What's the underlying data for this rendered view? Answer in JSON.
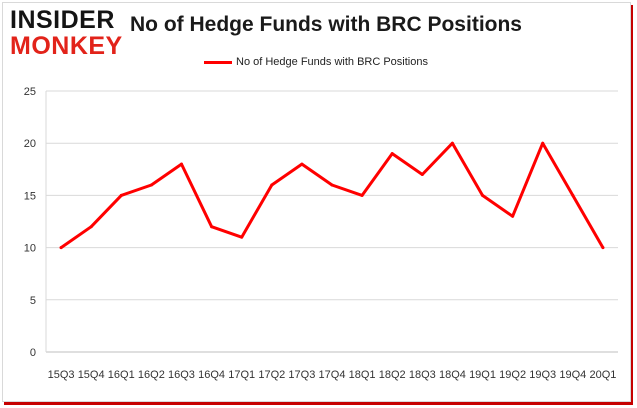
{
  "logo": {
    "line1": "INSIDER",
    "line2": "MONKEY"
  },
  "chart_data": {
    "type": "line",
    "title": "No of Hedge Funds with BRC Positions",
    "xlabel": "",
    "ylabel": "",
    "legend_position": "top-center",
    "grid": true,
    "categories": [
      "15Q3",
      "15Q4",
      "16Q1",
      "16Q2",
      "16Q3",
      "16Q4",
      "17Q1",
      "17Q2",
      "17Q3",
      "17Q4",
      "18Q1",
      "18Q2",
      "18Q3",
      "18Q4",
      "19Q1",
      "19Q2",
      "19Q3",
      "19Q4",
      "20Q1"
    ],
    "ylim": [
      0,
      25
    ],
    "yticks": [
      0,
      5,
      10,
      15,
      20,
      25
    ],
    "series": [
      {
        "name": "No of Hedge Funds with BRC Positions",
        "color": "#ff0000",
        "values": [
          10,
          12,
          15,
          16,
          18,
          12,
          11,
          16,
          18,
          16,
          15,
          19,
          17,
          20,
          15,
          13,
          20,
          15,
          10
        ]
      }
    ]
  }
}
